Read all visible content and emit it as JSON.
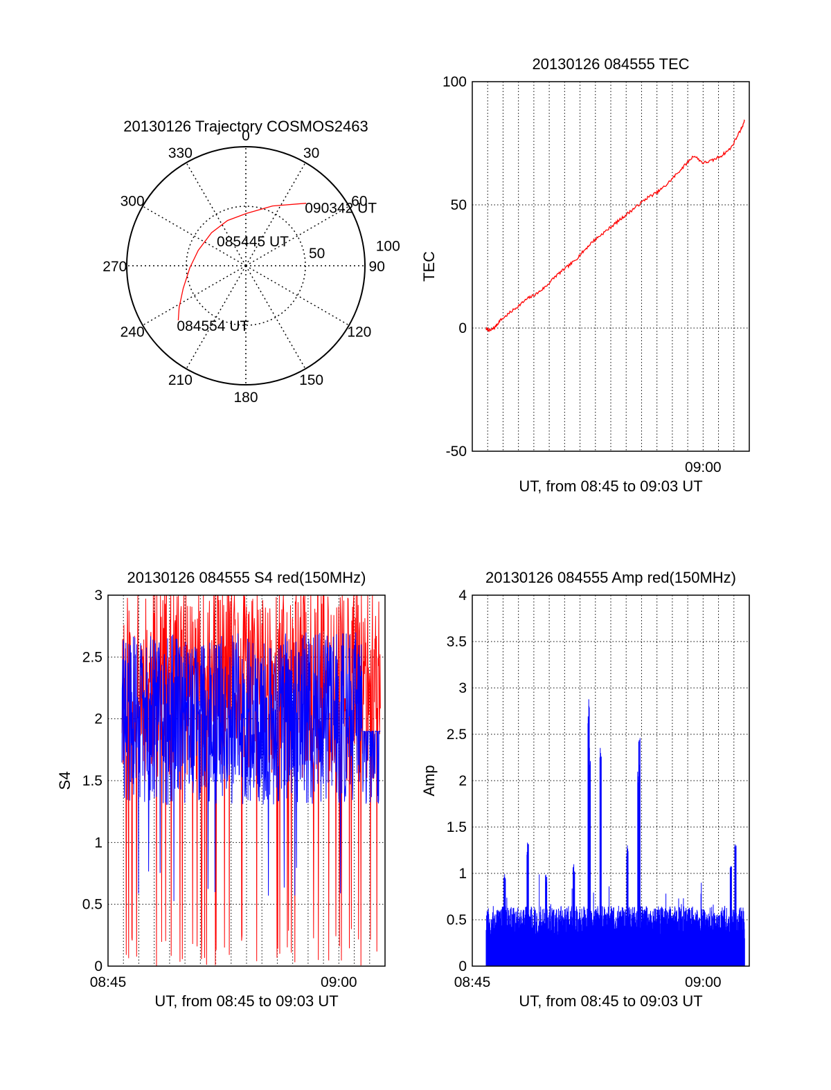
{
  "colors": {
    "red": "#ff0000",
    "blue": "#0000ff",
    "axis": "#000000",
    "grid": "#000000"
  },
  "chart_data": [
    {
      "id": "trajectory",
      "type": "polar",
      "title": "20130126 Trajectory COSMOS2463",
      "azimuth_labels": [
        "0",
        "30",
        "60",
        "90",
        "120",
        "150",
        "180",
        "210",
        "240",
        "270",
        "300",
        "330"
      ],
      "azimuths": [
        0,
        30,
        60,
        90,
        120,
        150,
        180,
        210,
        240,
        270,
        300,
        330
      ],
      "radial_rings": [
        50,
        100
      ],
      "radial_labels": [
        "50",
        "100"
      ],
      "rmax": 100,
      "direction": "clockwise-from-north",
      "track": {
        "points": [
          [
            231,
            73
          ],
          [
            238,
            66
          ],
          [
            250,
            56
          ],
          [
            268,
            47
          ],
          [
            288,
            42
          ],
          [
            314,
            40
          ],
          [
            338,
            41
          ],
          [
            1,
            44
          ],
          [
            24,
            55
          ],
          [
            44,
            73
          ]
        ],
        "color": "#ff0000",
        "labels": [
          {
            "text": "090342 UT",
            "az": 44,
            "r": 73
          },
          {
            "text": "085445 UT",
            "az": 300,
            "r": 28
          },
          {
            "text": "084554 UT",
            "az": 231,
            "r": 73
          }
        ]
      }
    },
    {
      "id": "tec",
      "type": "line",
      "title": "20130126 084555 TEC",
      "xlabel": "UT, from 08:45 to 09:03 UT",
      "ylabel": "TEC",
      "xlim": [
        8.75,
        9.05
      ],
      "ylim": [
        -50,
        100
      ],
      "xticks": [
        {
          "v": 9.0,
          "label": "09:00"
        }
      ],
      "yticks": [
        -50,
        0,
        50,
        100
      ],
      "ytick_labels": [
        "-50",
        "0",
        "50",
        "100"
      ],
      "grid": true,
      "series": [
        {
          "color": "#ff0000",
          "x": [
            8.765,
            8.77,
            8.775,
            8.78,
            8.79,
            8.8,
            8.81,
            8.82,
            8.83,
            8.84,
            8.85,
            8.86,
            8.87,
            8.88,
            8.89,
            8.9,
            8.91,
            8.92,
            8.93,
            8.94,
            8.95,
            8.96,
            8.97,
            8.98,
            8.99,
            9.0,
            9.01,
            9.02,
            9.03,
            9.04,
            9.045
          ],
          "y": [
            -0.5,
            -1,
            0.5,
            3,
            6,
            9,
            12,
            14,
            17,
            21,
            24,
            27,
            31,
            35,
            38,
            41,
            44,
            47,
            50,
            53,
            55,
            58,
            62,
            66,
            70,
            67,
            68,
            70,
            73,
            80,
            84
          ]
        }
      ]
    },
    {
      "id": "s4",
      "type": "line",
      "title": "20130126 084555 S4 red(150MHz)",
      "xlabel": "UT, from 08:45 to 09:03 UT",
      "ylabel": "S4",
      "xlim": [
        8.75,
        9.05
      ],
      "ylim": [
        0,
        3
      ],
      "xticks": [
        {
          "v": 8.75,
          "label": "08:45"
        },
        {
          "v": 9.0,
          "label": "09:00"
        }
      ],
      "yticks": [
        0,
        0.5,
        1,
        1.5,
        2,
        2.5,
        3
      ],
      "ytick_labels": [
        "0",
        "0.5",
        "1",
        "1.5",
        "2",
        "2.5",
        "3"
      ],
      "grid": true,
      "series": [
        {
          "color": "#ff0000",
          "x_start": 8.765,
          "x_end": 9.045,
          "n": 650,
          "base": 2.3,
          "spread": 0.8,
          "dip_prob": 0.06,
          "dip_to": 0.0,
          "seed": 11
        },
        {
          "color": "#0000ff",
          "x_start": 8.765,
          "x_end": 9.045,
          "n": 900,
          "base": 2.0,
          "spread": 0.7,
          "dip_prob": 0.01,
          "dip_to": 0.5,
          "seed": 29
        }
      ]
    },
    {
      "id": "amp",
      "type": "line",
      "title": "20130126 084555 Amp red(150MHz)",
      "xlabel": "UT, from 08:45 to 09:03 UT",
      "ylabel": "Amp",
      "xlim": [
        8.75,
        9.05
      ],
      "ylim": [
        0,
        4
      ],
      "xticks": [
        {
          "v": 8.75,
          "label": "08:45"
        },
        {
          "v": 9.0,
          "label": "09:00"
        }
      ],
      "yticks": [
        0,
        0.5,
        1,
        1.5,
        2,
        2.5,
        3,
        3.5,
        4
      ],
      "ytick_labels": [
        "0",
        "0.5",
        "1",
        "1.5",
        "2",
        "2.5",
        "3",
        "3.5",
        "4"
      ],
      "grid": true,
      "series": [
        {
          "color": "#0000ff",
          "x_start": 8.765,
          "x_end": 9.045,
          "n": 1300,
          "base": 0.3,
          "spread": 0.35,
          "seed": 53,
          "peaks": [
            [
              8.876,
              2.95
            ],
            [
              8.877,
              2.4
            ],
            [
              8.889,
              2.38
            ],
            [
              8.931,
              2.5
            ],
            [
              8.93,
              2.1
            ],
            [
              8.81,
              1.37
            ],
            [
              9.035,
              1.37
            ],
            [
              8.918,
              1.35
            ],
            [
              8.86,
              1.1
            ],
            [
              9.03,
              1.1
            ],
            [
              8.785,
              1.0
            ],
            [
              8.83,
              1.0
            ]
          ]
        }
      ]
    }
  ]
}
